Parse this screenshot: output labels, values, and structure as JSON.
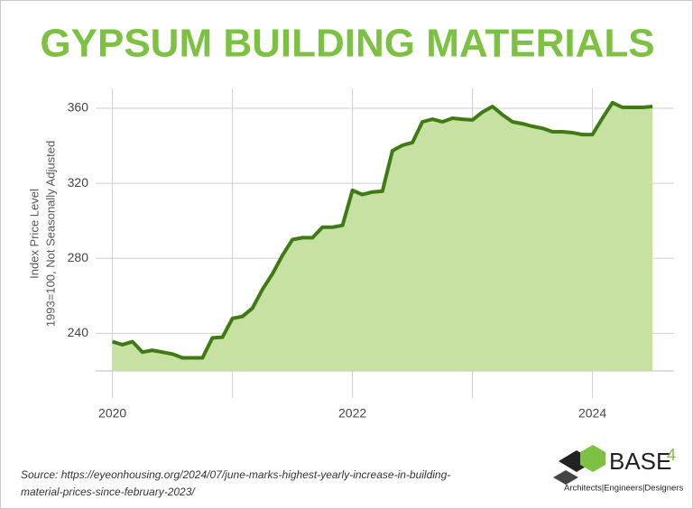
{
  "chart_data": {
    "type": "area",
    "title": "GYPSUM BUILDING MATERIALS",
    "y_label": [
      "Index Price Level",
      "1993=100, Not Seasonally Adjusted"
    ],
    "x": [
      2020,
      2020.083,
      2020.167,
      2020.25,
      2020.333,
      2020.417,
      2020.5,
      2020.583,
      2020.667,
      2020.75,
      2020.833,
      2020.917,
      2021,
      2021.083,
      2021.167,
      2021.25,
      2021.333,
      2021.417,
      2021.5,
      2021.583,
      2021.667,
      2021.75,
      2021.833,
      2021.917,
      2022,
      2022.083,
      2022.167,
      2022.25,
      2022.333,
      2022.417,
      2022.5,
      2022.583,
      2022.667,
      2022.75,
      2022.833,
      2022.917,
      2023,
      2023.083,
      2023.167,
      2023.25,
      2023.333,
      2023.417,
      2023.5,
      2023.583,
      2023.667,
      2023.75,
      2023.833,
      2023.917,
      2024,
      2024.083,
      2024.167,
      2024.25,
      2024.333,
      2024.417,
      2024.5
    ],
    "series": [
      {
        "color": "#3f7a13",
        "fill": "#c6e1a1",
        "values": [
          235.6,
          234,
          235.6,
          230,
          231,
          230,
          229,
          227,
          227,
          227,
          237.6,
          238,
          248,
          249,
          253.5,
          263.5,
          271.7,
          281.7,
          290,
          291,
          291,
          296.6,
          296.6,
          297.6,
          316.3,
          314,
          315.4,
          315.8,
          337.4,
          340.3,
          341.8,
          352.8,
          354.2,
          352.8,
          354.7,
          354.2,
          353.8,
          358,
          361,
          356.6,
          352.8,
          351.8,
          350.4,
          349.4,
          347.5,
          347.5,
          347,
          346,
          346,
          354.7,
          363,
          360.5,
          360.5,
          360.5,
          361
        ]
      }
    ],
    "xlim": [
      2019.86,
      2024.68
    ],
    "ylim": [
      220,
      370.6
    ],
    "xticks": [
      2020,
      2022,
      2024
    ],
    "x_minor_ticks": [
      2021,
      2023
    ],
    "yticks": [
      240,
      280,
      320,
      360
    ],
    "grid": true,
    "source_prefix": "Source:",
    "source_text": "https://eyeonhousing.org/2024/07/june-marks-highest-yearly-increase-in-building-material-prices-since-february-2023/",
    "logo": {
      "name": "BASE",
      "superscript": "4",
      "tagline": "Architects|Engineers|Designers"
    }
  }
}
